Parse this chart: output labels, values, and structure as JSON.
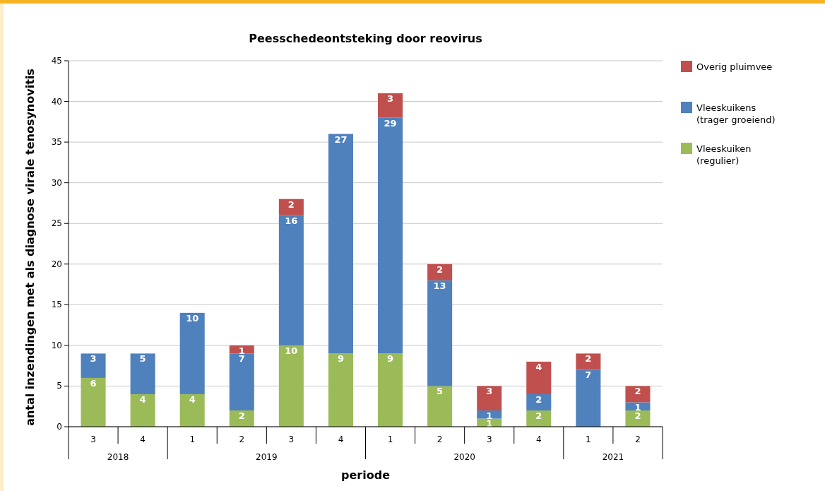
{
  "chart_data": {
    "type": "bar",
    "stacked": true,
    "title": "Peesschedeontsteking door reovirus",
    "xlabel": "periode",
    "ylabel": "antal inzendingen met als diagnose virale tenosynovitis",
    "categories": [
      "3",
      "4",
      "1",
      "2",
      "3",
      "4",
      "1",
      "2",
      "3",
      "4",
      "1",
      "2"
    ],
    "series": [
      {
        "name": "Vleeskuiken (regulier)",
        "color": "#9bbb59",
        "values": [
          6,
          4,
          4,
          2,
          10,
          9,
          9,
          5,
          1,
          2,
          null,
          2
        ]
      },
      {
        "name": "Vleeskuikens (trager groeiend)",
        "color": "#4f81bd",
        "values": [
          3,
          5,
          10,
          7,
          16,
          27,
          29,
          13,
          1,
          2,
          7,
          1
        ]
      },
      {
        "name": "Overig pluimvee",
        "color": "#c0504d",
        "values": [
          null,
          null,
          null,
          1,
          2,
          null,
          3,
          2,
          3,
          4,
          2,
          2
        ]
      }
    ],
    "ylim": [
      0,
      45
    ],
    "yticks": [
      0,
      5,
      10,
      15,
      20,
      25,
      30,
      35,
      40,
      45
    ],
    "grid": "y",
    "legend": "right",
    "data_labels": true,
    "annotations": [
      "2018",
      "2019",
      "2020",
      "2021"
    ]
  }
}
